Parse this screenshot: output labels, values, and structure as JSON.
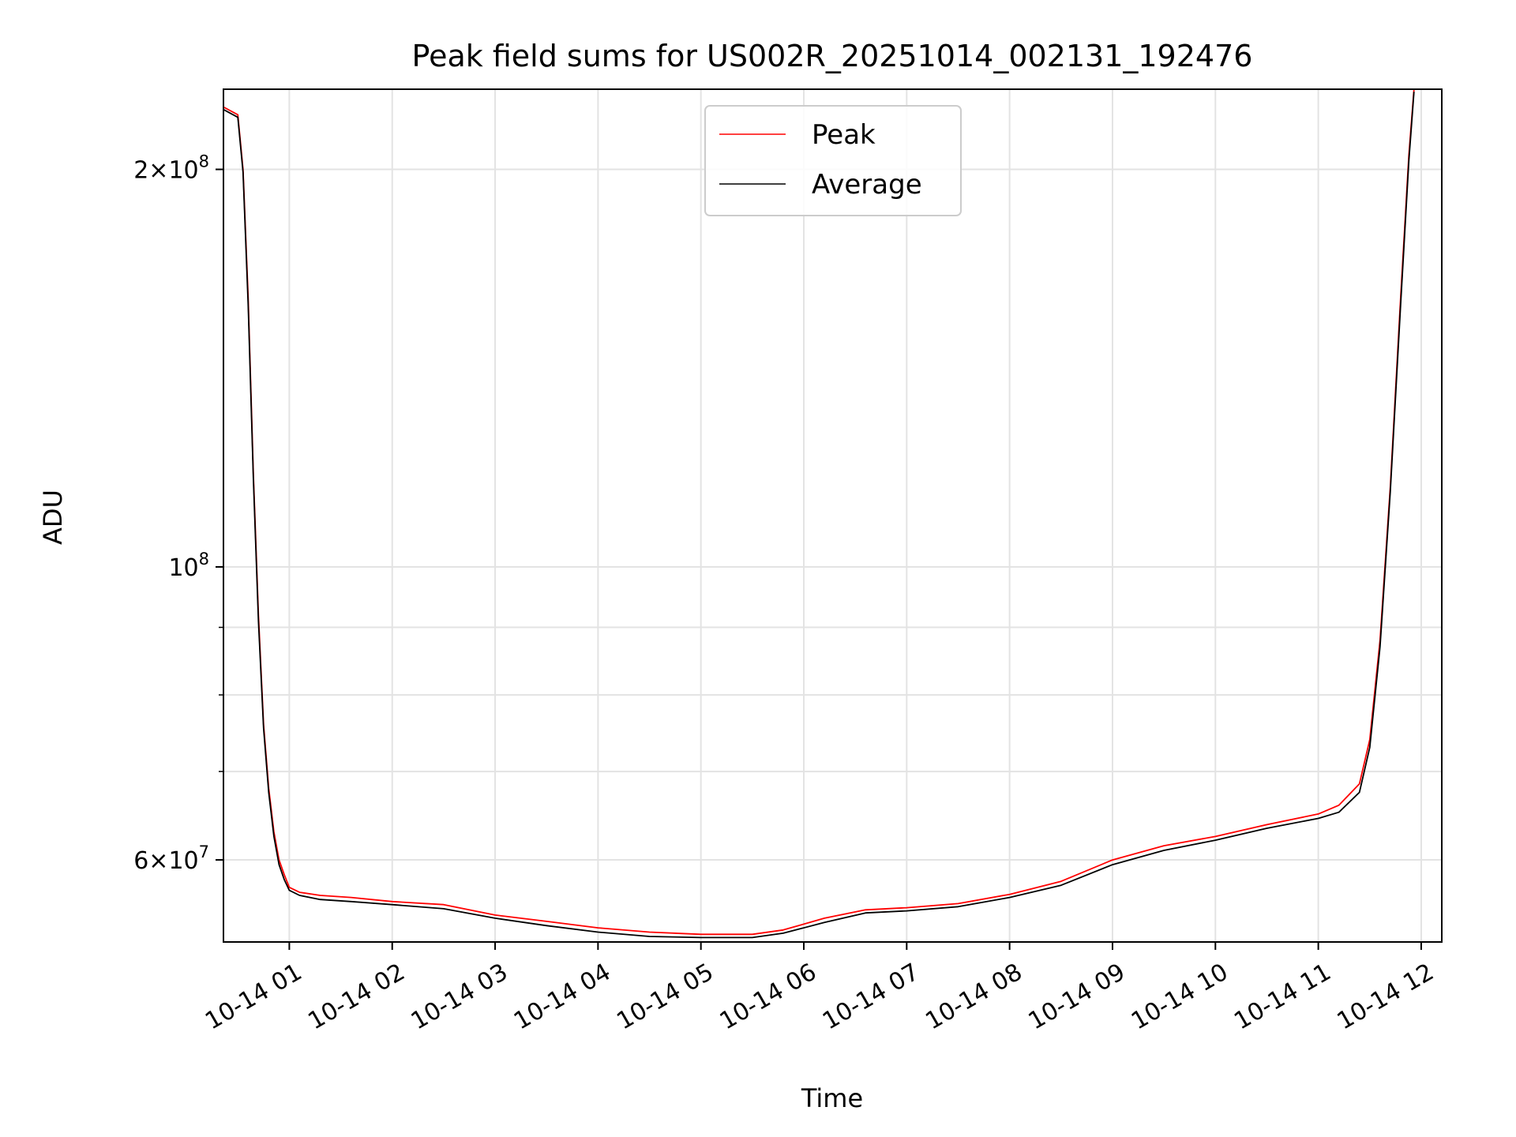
{
  "chart_data": {
    "type": "line",
    "title": "Peak field sums for US002R_20251014_002131_192476",
    "xlabel": "Time",
    "ylabel": "ADU",
    "yscale": "log",
    "xlim": [
      0.36,
      12.2
    ],
    "ylim": [
      52000000,
      230000000
    ],
    "grid": true,
    "legend_position": "top-center",
    "x_tick_values": [
      1,
      2,
      3,
      4,
      5,
      6,
      7,
      8,
      9,
      10,
      11,
      12
    ],
    "x_tick_labels": [
      "10-14 01",
      "10-14 02",
      "10-14 03",
      "10-14 04",
      "10-14 05",
      "10-14 06",
      "10-14 07",
      "10-14 08",
      "10-14 09",
      "10-14 10",
      "10-14 11",
      "10-14 12"
    ],
    "y_major_ticks": [
      {
        "value": 60000000,
        "base": "6×10",
        "exp": "7"
      },
      {
        "value": 100000000,
        "base": "10",
        "exp": "8"
      },
      {
        "value": 200000000,
        "base": "2×10",
        "exp": "8"
      }
    ],
    "y_minor_ticks": [
      70000000,
      80000000,
      90000000
    ],
    "series": [
      {
        "name": "Peak",
        "color": "#ff0000",
        "x": [
          0.36,
          0.5,
          0.55,
          0.6,
          0.65,
          0.7,
          0.75,
          0.8,
          0.85,
          0.9,
          0.95,
          1.0,
          1.1,
          1.3,
          1.6,
          2.0,
          2.5,
          3.0,
          3.5,
          4.0,
          4.5,
          5.0,
          5.5,
          5.8,
          6.2,
          6.6,
          7.0,
          7.5,
          8.0,
          8.5,
          9.0,
          9.5,
          10.0,
          10.5,
          11.0,
          11.2,
          11.4,
          11.5,
          11.6,
          11.7,
          11.8,
          11.88,
          11.93
        ],
        "values": [
          223000000,
          220000000,
          200000000,
          160000000,
          118000000,
          92000000,
          76000000,
          68000000,
          63000000,
          60000000,
          58500000,
          57200000,
          56700000,
          56400000,
          56200000,
          55800000,
          55500000,
          54500000,
          53900000,
          53300000,
          52900000,
          52700000,
          52700000,
          53100000,
          54200000,
          55000000,
          55200000,
          55600000,
          56500000,
          57800000,
          60000000,
          61500000,
          62500000,
          63800000,
          65000000,
          66000000,
          68500000,
          74000000,
          88000000,
          115000000,
          160000000,
          205000000,
          230000000
        ]
      },
      {
        "name": "Average",
        "color": "#000000",
        "x": [
          0.36,
          0.5,
          0.55,
          0.6,
          0.65,
          0.7,
          0.75,
          0.8,
          0.85,
          0.9,
          0.95,
          1.0,
          1.1,
          1.3,
          1.6,
          2.0,
          2.5,
          3.0,
          3.5,
          4.0,
          4.5,
          5.0,
          5.5,
          5.8,
          6.2,
          6.6,
          7.0,
          7.5,
          8.0,
          8.5,
          9.0,
          9.5,
          10.0,
          10.5,
          11.0,
          11.2,
          11.4,
          11.5,
          11.6,
          11.7,
          11.8,
          11.88,
          11.93
        ],
        "values": [
          222000000,
          219000000,
          199000000,
          158000000,
          117000000,
          91000000,
          75500000,
          67500000,
          62500000,
          59500000,
          58000000,
          56900000,
          56400000,
          56000000,
          55800000,
          55500000,
          55100000,
          54200000,
          53500000,
          52900000,
          52500000,
          52400000,
          52400000,
          52800000,
          53800000,
          54700000,
          54900000,
          55300000,
          56200000,
          57400000,
          59500000,
          61000000,
          62100000,
          63400000,
          64500000,
          65200000,
          67500000,
          73000000,
          87000000,
          114000000,
          158000000,
          203000000,
          229000000
        ]
      }
    ]
  }
}
